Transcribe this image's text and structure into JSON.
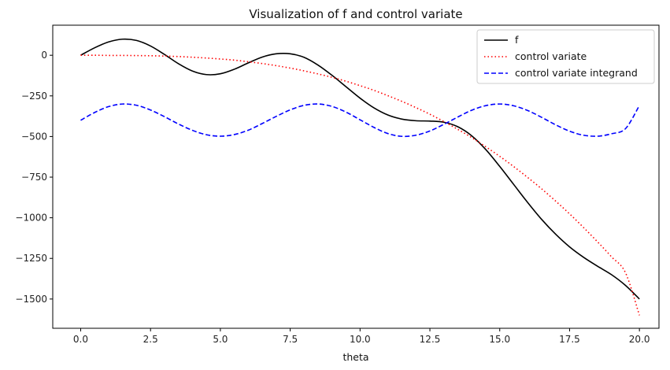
{
  "chart_data": {
    "type": "line",
    "title": "Visualization of f and control variate",
    "xlabel": "theta",
    "ylabel": "",
    "xlim": [
      -1,
      20.7
    ],
    "ylim": [
      -1680,
      185
    ],
    "xticks": [
      0.0,
      2.5,
      5.0,
      7.5,
      10.0,
      12.5,
      15.0,
      17.5,
      20.0
    ],
    "xtick_labels": [
      "0.0",
      "2.5",
      "5.0",
      "7.5",
      "10.0",
      "12.5",
      "15.0",
      "17.5",
      "20.0"
    ],
    "yticks": [
      0,
      -250,
      -500,
      -750,
      -1000,
      -1250,
      -1500
    ],
    "ytick_labels": [
      "0",
      "−250",
      "−500",
      "−750",
      "−1000",
      "−1250",
      "−1500"
    ],
    "grid": false,
    "legend_position": "top-right",
    "series": [
      {
        "name": "f",
        "color": "#000000",
        "style": "solid",
        "x": [
          0,
          0.5,
          1.0,
          1.5,
          2.0,
          2.5,
          3.0,
          3.5,
          4.0,
          4.5,
          5.0,
          5.5,
          6.0,
          6.5,
          7.0,
          7.5,
          8.0,
          8.5,
          9.0,
          9.5,
          10.0,
          10.5,
          11.0,
          11.5,
          12.0,
          12.5,
          13.0,
          13.5,
          14.0,
          14.5,
          15.0,
          15.5,
          16.0,
          16.5,
          17.0,
          17.5,
          18.0,
          18.5,
          19.0,
          19.5,
          20.0
        ],
        "y": [
          0,
          46,
          82,
          99,
          91,
          57,
          5,
          -52,
          -97,
          -119,
          -114,
          -86,
          -47,
          -11,
          9,
          9,
          -13,
          -61,
          -124,
          -194,
          -264,
          -324,
          -368,
          -393,
          -403,
          -405,
          -412,
          -440,
          -496,
          -580,
          -684,
          -795,
          -906,
          -1010,
          -1101,
          -1179,
          -1243,
          -1298,
          -1350,
          -1416,
          -1500
        ]
      },
      {
        "name": "control variate",
        "color": "#ff0000",
        "style": "dotted",
        "x": [
          0,
          0.5,
          1.0,
          1.5,
          2.0,
          2.5,
          3.0,
          3.5,
          4.0,
          4.5,
          5.0,
          5.5,
          6.0,
          6.5,
          7.0,
          7.5,
          8.0,
          8.5,
          9.0,
          9.5,
          10.0,
          10.5,
          11.0,
          11.5,
          12.0,
          12.5,
          13.0,
          13.5,
          14.0,
          14.5,
          15.0,
          15.5,
          16.0,
          16.5,
          17.0,
          17.5,
          18.0,
          18.5,
          19.0,
          19.5,
          20.0
        ],
        "y": [
          0,
          0,
          -1,
          -1,
          -2,
          -3,
          -5,
          -8,
          -12,
          -17,
          -23,
          -30,
          -40,
          -51,
          -64,
          -79,
          -96,
          -115,
          -136,
          -160,
          -187,
          -216,
          -249,
          -284,
          -322,
          -363,
          -408,
          -456,
          -507,
          -563,
          -622,
          -685,
          -752,
          -822,
          -897,
          -976,
          -1060,
          -1148,
          -1240,
          -1338,
          -1600
        ]
      },
      {
        "name": "control variate integrand",
        "color": "#0000ff",
        "style": "dashed",
        "x": [
          0,
          0.5,
          1.0,
          1.5,
          2.0,
          2.5,
          3.0,
          3.5,
          4.0,
          4.5,
          5.0,
          5.5,
          6.0,
          6.5,
          7.0,
          7.5,
          8.0,
          8.5,
          9.0,
          9.5,
          10.0,
          10.5,
          11.0,
          11.5,
          12.0,
          12.5,
          13.0,
          13.5,
          14.0,
          14.5,
          15.0,
          15.5,
          16.0,
          16.5,
          17.0,
          17.5,
          18.0,
          18.5,
          19.0,
          19.5,
          20.0
        ],
        "y": [
          -400,
          -352,
          -316,
          -300,
          -308,
          -337,
          -378,
          -423,
          -462,
          -489,
          -498,
          -488,
          -461,
          -420,
          -376,
          -336,
          -308,
          -300,
          -315,
          -350,
          -397,
          -444,
          -482,
          -499,
          -492,
          -466,
          -425,
          -380,
          -338,
          -310,
          -300,
          -311,
          -340,
          -382,
          -428,
          -467,
          -492,
          -498,
          -483,
          -452,
          -309
        ]
      }
    ]
  }
}
